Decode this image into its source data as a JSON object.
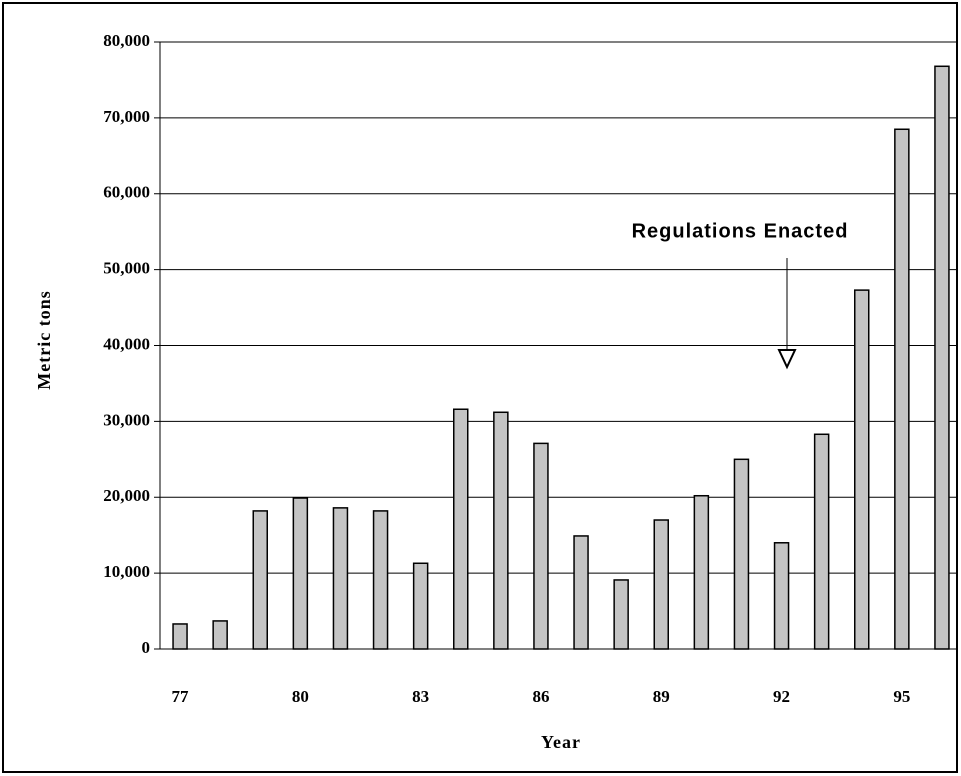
{
  "chart_data": {
    "type": "bar",
    "x_label": "Year",
    "y_label": "Metric tons",
    "annotation": "Regulations Enacted",
    "categories": [
      "77",
      null,
      null,
      "80",
      null,
      null,
      "83",
      null,
      null,
      "86",
      null,
      null,
      "89",
      null,
      null,
      "92",
      null,
      null,
      "95",
      null
    ],
    "values": [
      3300,
      3700,
      18200,
      19900,
      18600,
      18200,
      11300,
      31600,
      31200,
      27100,
      14900,
      9100,
      17000,
      20200,
      25000,
      14000,
      28300,
      47300,
      68500,
      76800
    ],
    "color": "#c4c4c4",
    "ylim": [
      0,
      80000
    ],
    "yticks": [
      0,
      {
        "value": 10000,
        "label": "10,000"
      },
      {
        "value": 20000,
        "label": "20,000"
      },
      {
        "value": 30000,
        "label": "30,000"
      },
      {
        "value": 40000,
        "label": "40,000"
      },
      {
        "value": 50000,
        "label": "50,000"
      },
      {
        "value": 60000,
        "label": "60,000"
      },
      {
        "value": 70000,
        "label": "70,000"
      },
      {
        "value": 80000,
        "label": "80,000"
      }
    ],
    "grid": true
  }
}
